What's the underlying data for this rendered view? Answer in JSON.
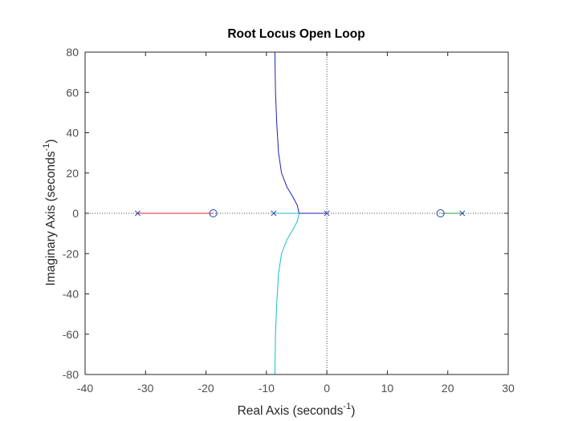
{
  "chart_data": {
    "type": "line",
    "title": "Root Locus Open Loop",
    "xlabel": {
      "text": "Real Axis (seconds",
      "superscript": "-1",
      "close": ")"
    },
    "ylabel": {
      "text": "Imaginary Axis (seconds",
      "superscript": "-1",
      "close": ")"
    },
    "xlim": [
      -40,
      30
    ],
    "ylim": [
      -80,
      80
    ],
    "xticks": [
      -40,
      -30,
      -20,
      -10,
      0,
      10,
      20,
      30
    ],
    "yticks": [
      -80,
      -60,
      -40,
      -20,
      0,
      20,
      40,
      60,
      80
    ],
    "zero_lines": "dotted",
    "box": true,
    "colors": {
      "red_branch": "#d62728",
      "blue_branch": "#1f1fb4",
      "cyan_branch": "#17becf",
      "green_branch": "#2ca02c",
      "axis": "#262626",
      "dotted": "#4d4d4d"
    },
    "poles": [
      [
        -31.3,
        0
      ],
      [
        -8.8,
        0
      ],
      [
        0,
        0
      ],
      [
        22.4,
        0
      ]
    ],
    "zeros": [
      [
        -18.8,
        0
      ],
      [
        18.8,
        0
      ]
    ],
    "series": [
      {
        "color_key": "red_branch",
        "points": [
          [
            -31.3,
            0
          ],
          [
            -18.8,
            0
          ]
        ]
      },
      {
        "color_key": "green_branch",
        "points": [
          [
            22.4,
            0
          ],
          [
            18.8,
            0
          ]
        ]
      },
      {
        "color_key": "cyan_branch",
        "points": [
          [
            -8.8,
            0
          ],
          [
            -4.6,
            0
          ]
        ]
      },
      {
        "color_key": "blue_branch",
        "points": [
          [
            0,
            0
          ],
          [
            -4.6,
            0
          ]
        ]
      },
      {
        "color_key": "blue_branch",
        "points": [
          [
            -4.6,
            0
          ],
          [
            -4.9,
            4
          ],
          [
            -5.6,
            8
          ],
          [
            -6.6,
            13
          ],
          [
            -7.5,
            20
          ],
          [
            -8.0,
            30
          ],
          [
            -8.3,
            45
          ],
          [
            -8.5,
            60
          ],
          [
            -8.6,
            80
          ]
        ]
      },
      {
        "color_key": "cyan_branch",
        "points": [
          [
            -4.6,
            0
          ],
          [
            -4.9,
            -4
          ],
          [
            -5.6,
            -8
          ],
          [
            -6.6,
            -13
          ],
          [
            -7.5,
            -20
          ],
          [
            -8.0,
            -30
          ],
          [
            -8.3,
            -45
          ],
          [
            -8.5,
            -60
          ],
          [
            -8.6,
            -80
          ]
        ]
      }
    ]
  }
}
